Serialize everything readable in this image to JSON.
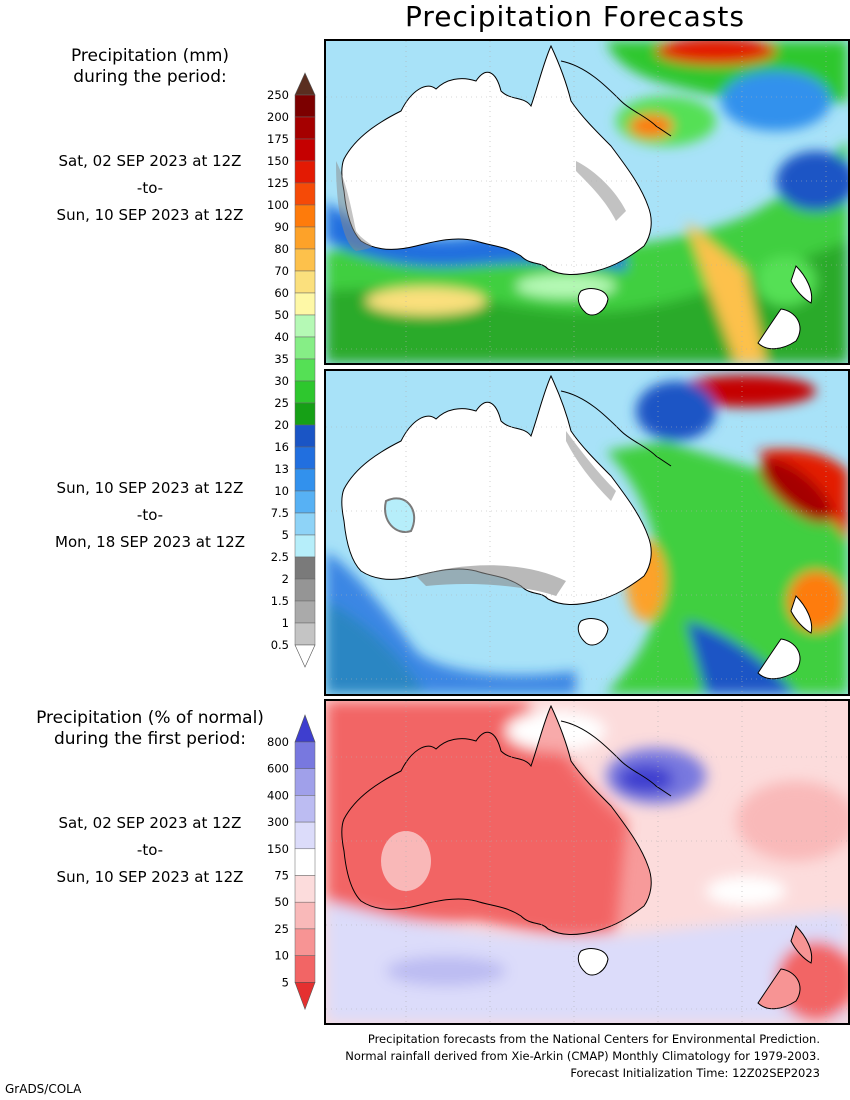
{
  "title": "Precipitation Forecasts",
  "legend_mm": {
    "heading_line1": "Precipitation (mm)",
    "heading_line2": "during the period:",
    "levels": [
      "0.5",
      "1",
      "1.5",
      "2",
      "2.5",
      "5",
      "7.5",
      "10",
      "13",
      "16",
      "20",
      "25",
      "30",
      "35",
      "40",
      "50",
      "60",
      "70",
      "80",
      "90",
      "100",
      "125",
      "150",
      "175",
      "200",
      "250"
    ],
    "colors": [
      "#c4c4c4",
      "#aaaaaa",
      "#959595",
      "#7a7a7a",
      "#b6eefa",
      "#8ed3f7",
      "#57b1f4",
      "#3291ed",
      "#216fdf",
      "#1a55c5",
      "#16a016",
      "#2ec72e",
      "#55e055",
      "#86ee86",
      "#b5f9b5",
      "#fef8a6",
      "#fbe07d",
      "#fdc14b",
      "#fda229",
      "#fe7b0b",
      "#f54a07",
      "#e31a03",
      "#c50000",
      "#a50000",
      "#7c0000"
    ],
    "top_cap_color": "#5a2e20"
  },
  "legend_pct": {
    "heading_line1": "Precipitation (% of normal)",
    "heading_line2": "during the first period:",
    "levels": [
      "5",
      "10",
      "25",
      "50",
      "75",
      "150",
      "300",
      "400",
      "600",
      "800"
    ],
    "colors": [
      "#f26565",
      "#f79494",
      "#f9b9b9",
      "#fcdcdc",
      "#ffffff",
      "#dcdcfa",
      "#bcbcf2",
      "#a0a0ea",
      "#7878df"
    ],
    "top_cap_color": "#3e3ecf",
    "bottom_cap_color": "#e53030"
  },
  "periods": [
    {
      "start": "Sat, 02 SEP 2023 at 12Z",
      "sep": "-to-",
      "end": "Sun, 10 SEP 2023 at 12Z"
    },
    {
      "start": "Sun, 10 SEP 2023 at 12Z",
      "sep": "-to-",
      "end": "Mon, 18 SEP 2023 at 12Z"
    },
    {
      "start": "Sat, 02 SEP 2023 at 12Z",
      "sep": "-to-",
      "end": "Sun, 10 SEP 2023 at 12Z"
    }
  ],
  "maps": {
    "land_color": "#ffffff",
    "coast_color": "#000000",
    "panel1_regions": "Australia interior dry (white/grey); heavy rain band over Southern Ocean and Tasman Sea; heavy rain north of Papua New Guinea",
    "panel2_regions": "Australia interior dry; rain along east coast and Tasman Sea; heavy rain near Solomon Islands",
    "panel3_regions": "Australia mostly below normal (red); above normal (blue) Gulf of Papua; Southern Ocean slightly above normal"
  },
  "footer": {
    "line1": "Precipitation forecasts from the National Centers for Environmental Prediction.",
    "line2": "Normal rainfall derived from Xie-Arkin (CMAP) Monthly Climatology for 1979-2003.",
    "line3": "Forecast Initialization Time: 12Z02SEP2023"
  },
  "credit": "GrADS/COLA"
}
